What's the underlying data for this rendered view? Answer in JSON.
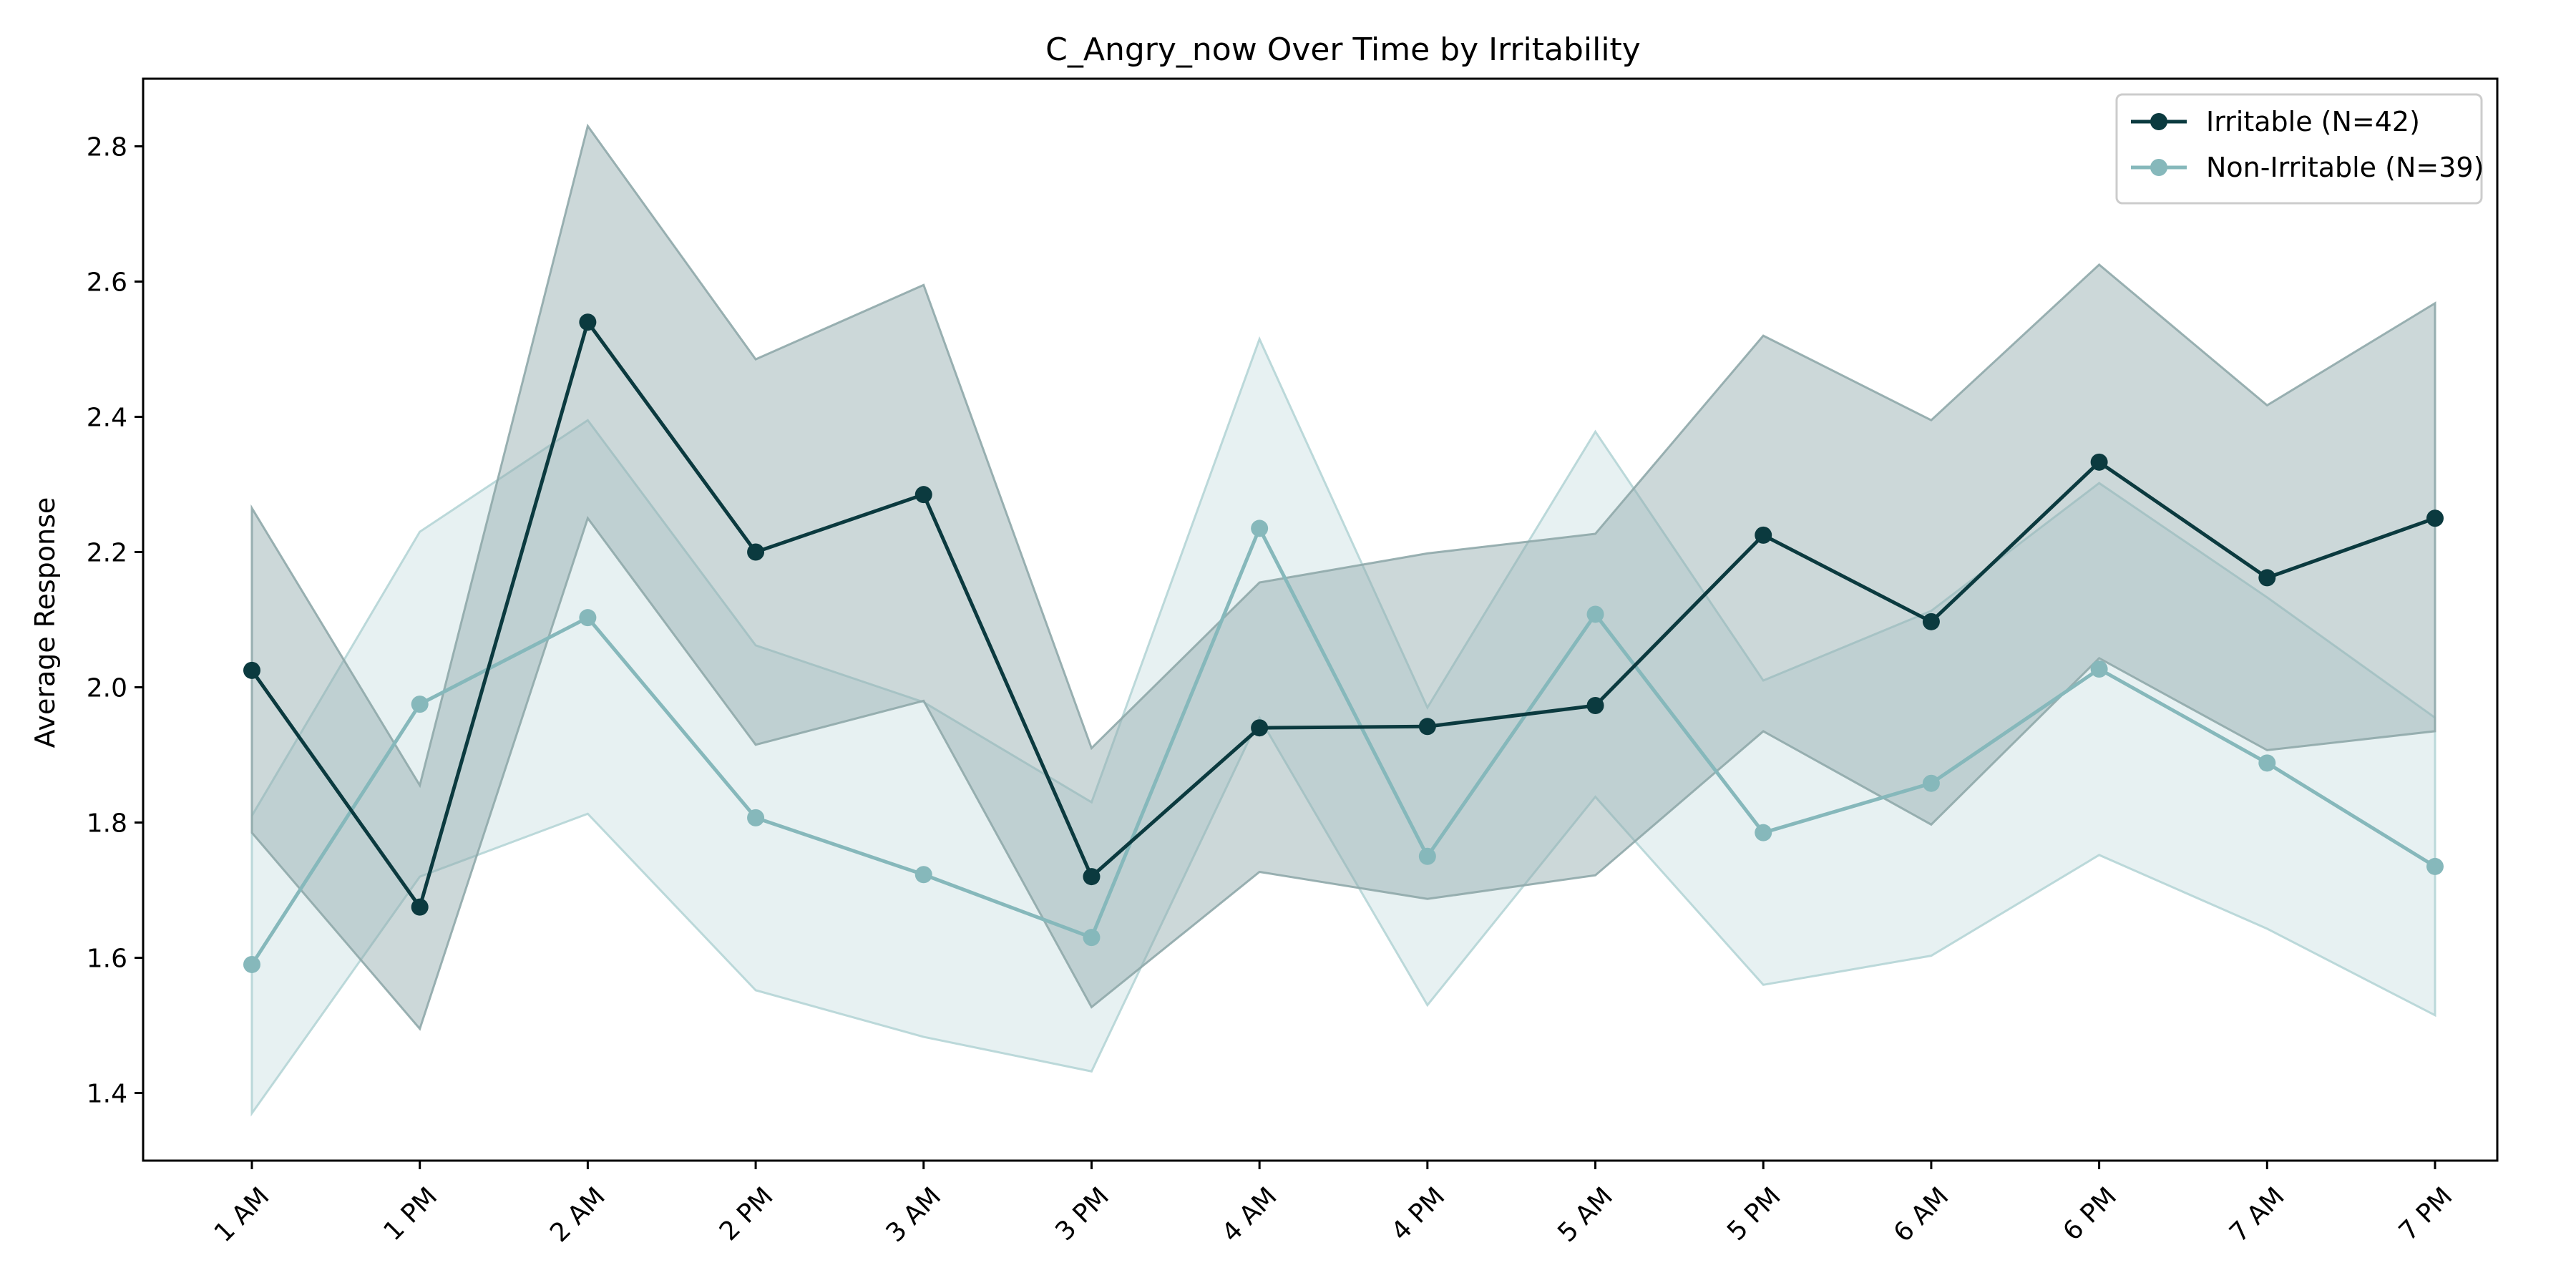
{
  "chart_data": {
    "type": "line",
    "title": "C_Angry_now Over Time by Irritability",
    "xlabel": "",
    "ylabel": "Average Response",
    "categories": [
      "1 AM",
      "1 PM",
      "2 AM",
      "2 PM",
      "3 AM",
      "3 PM",
      "4 AM",
      "4 PM",
      "5 AM",
      "5 PM",
      "6 AM",
      "6 PM",
      "7 AM",
      "7 PM"
    ],
    "ylim": [
      1.3,
      2.9
    ],
    "yticks": [
      1.4,
      1.6,
      1.8,
      2.0,
      2.2,
      2.4,
      2.6,
      2.8
    ],
    "ytick_labels": [
      "1.4",
      "1.6",
      "1.8",
      "2.0",
      "2.2",
      "2.4",
      "2.6",
      "2.8"
    ],
    "grid": false,
    "legend_position": "top-right",
    "series": [
      {
        "name": "Irritable (N=42)",
        "color": "#0b3a3f",
        "band_color": "#8fa9aa",
        "values": [
          2.025,
          1.675,
          2.54,
          2.2,
          2.285,
          1.72,
          1.94,
          1.942,
          1.973,
          2.225,
          2.097,
          2.333,
          2.162,
          2.25
        ],
        "upper": [
          2.265,
          1.855,
          2.83,
          2.485,
          2.595,
          1.91,
          2.155,
          2.198,
          2.227,
          2.52,
          2.395,
          2.625,
          2.417,
          2.568
        ],
        "lower": [
          1.785,
          1.495,
          2.25,
          1.915,
          1.98,
          1.527,
          1.727,
          1.687,
          1.722,
          1.935,
          1.797,
          2.043,
          1.907,
          1.935
        ]
      },
      {
        "name": "Non-Irritable (N=39)",
        "color": "#86b8bb",
        "band_color": "#b5d5d6",
        "values": [
          1.59,
          1.975,
          2.103,
          1.807,
          1.723,
          1.63,
          2.235,
          1.75,
          2.108,
          1.785,
          1.858,
          2.027,
          1.888,
          1.735
        ],
        "upper": [
          1.81,
          2.23,
          2.395,
          2.062,
          1.978,
          1.83,
          2.515,
          1.97,
          2.378,
          2.01,
          2.113,
          2.302,
          2.133,
          1.955
        ],
        "lower": [
          1.37,
          1.72,
          1.813,
          1.552,
          1.483,
          1.432,
          1.955,
          1.53,
          1.838,
          1.56,
          1.603,
          1.752,
          1.643,
          1.515
        ]
      }
    ]
  }
}
